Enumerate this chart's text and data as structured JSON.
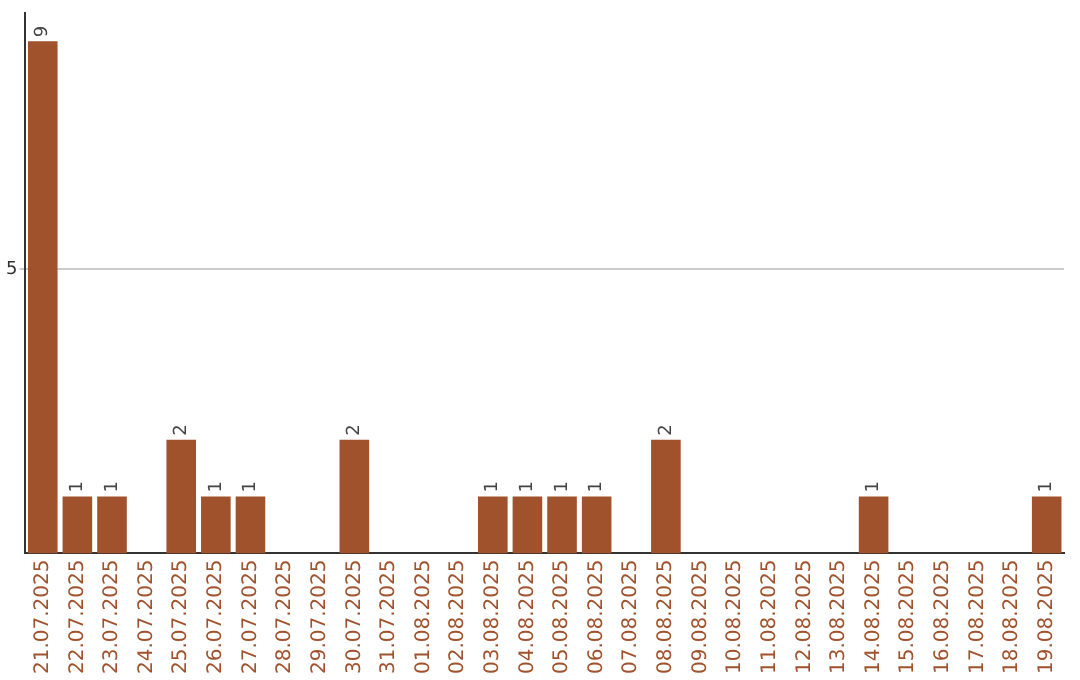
{
  "chart_data": {
    "type": "bar",
    "categories": [
      "21.07.2025",
      "22.07.2025",
      "23.07.2025",
      "24.07.2025",
      "25.07.2025",
      "26.07.2025",
      "27.07.2025",
      "28.07.2025",
      "29.07.2025",
      "30.07.2025",
      "31.07.2025",
      "01.08.2025",
      "02.08.2025",
      "03.08.2025",
      "04.08.2025",
      "05.08.2025",
      "06.08.2025",
      "07.08.2025",
      "08.08.2025",
      "09.08.2025",
      "10.08.2025",
      "11.08.2025",
      "12.08.2025",
      "13.08.2025",
      "14.08.2025",
      "15.08.2025",
      "16.08.2025",
      "17.08.2025",
      "18.08.2025",
      "19.08.2025"
    ],
    "values": [
      9,
      1,
      1,
      0,
      2,
      1,
      1,
      0,
      0,
      2,
      0,
      0,
      0,
      1,
      1,
      1,
      1,
      0,
      2,
      0,
      0,
      0,
      0,
      0,
      1,
      0,
      0,
      0,
      0,
      1
    ],
    "value_labels": [
      "9",
      "1",
      "1",
      null,
      "2",
      "1",
      "1",
      null,
      null,
      "2",
      null,
      null,
      null,
      "1",
      "1",
      "1",
      "1",
      null,
      "2",
      null,
      null,
      null,
      null,
      null,
      "1",
      null,
      null,
      null,
      null,
      "1"
    ],
    "color": "#a0522d",
    "ylim": [
      0,
      9.5
    ],
    "yticks": [
      5
    ],
    "grid": "y",
    "legend": false
  }
}
